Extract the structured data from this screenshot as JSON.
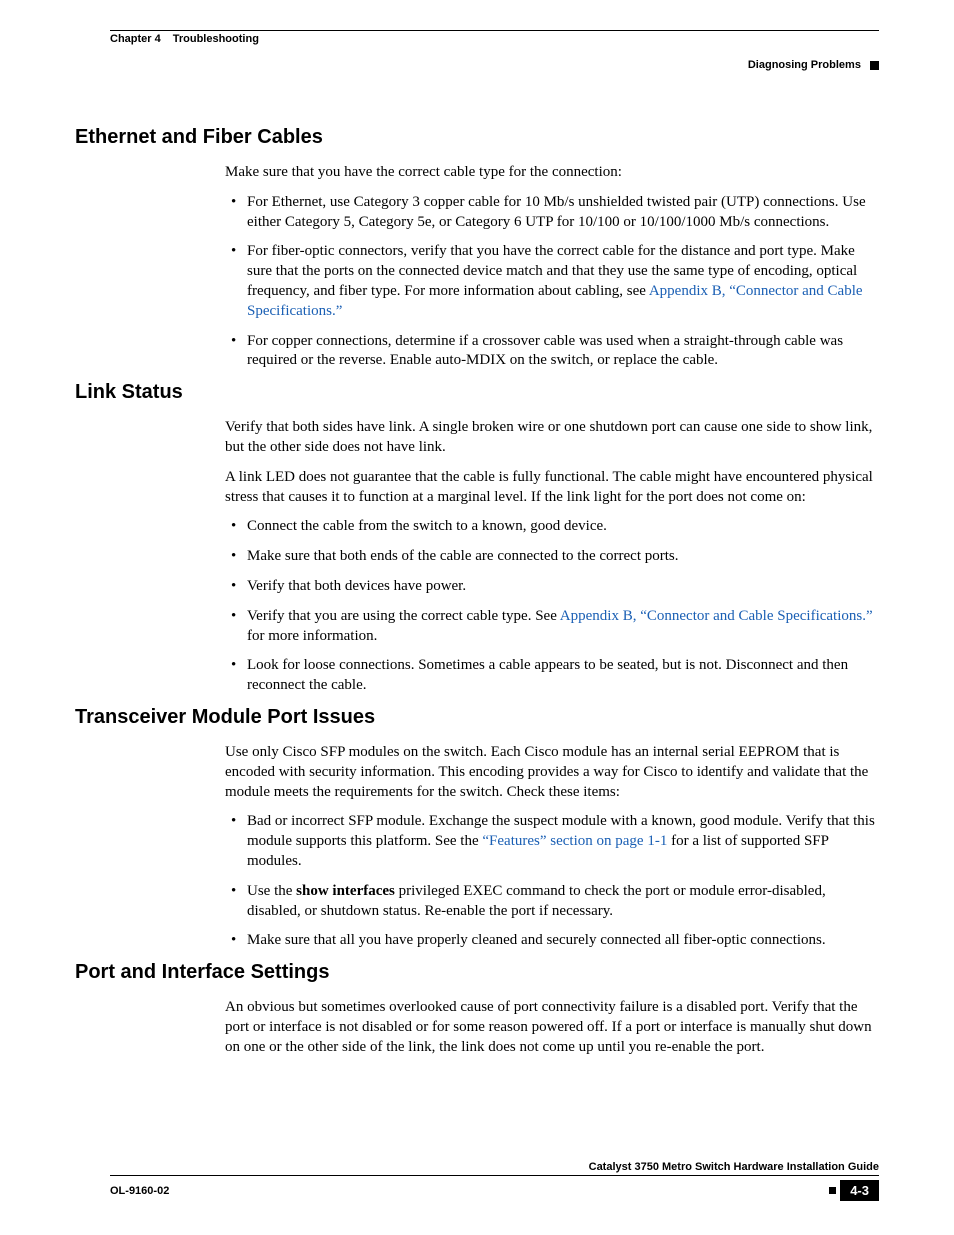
{
  "header": {
    "chapter_label": "Chapter 4",
    "chapter_title": "Troubleshooting",
    "subheader": "Diagnosing Problems"
  },
  "colors": {
    "text": "#000000",
    "link": "#1a5fb4",
    "background": "#ffffff",
    "rule": "#000000"
  },
  "typography": {
    "body_family": "Times New Roman",
    "heading_family": "Arial",
    "body_size_pt": 11,
    "heading_size_pt": 15,
    "header_size_pt": 8
  },
  "sections": [
    {
      "title": "Ethernet and Fiber Cables",
      "intro": "Make sure that you have the correct cable type for the connection:",
      "bullets": [
        {
          "text": "For Ethernet, use Category 3 copper cable for 10 Mb/s unshielded twisted pair (UTP) connections. Use either Category 5, Category 5e, or Category 6 UTP for 10/100 or 10/100/1000 Mb/s connections."
        },
        {
          "pre": "For fiber-optic connectors, verify that you have the correct cable for the distance and port type. Make sure that the ports on the connected device match and that they use the same type of encoding, optical frequency, and fiber type. For more information about cabling, see ",
          "link": "Appendix B, “Connector and Cable Specifications.”"
        },
        {
          "text": "For copper connections, determine if a crossover cable was used when a straight-through cable was required or the reverse. Enable auto-MDIX on the switch, or replace the cable."
        }
      ]
    },
    {
      "title": "Link Status",
      "paras": [
        "Verify that both sides have link. A single broken wire or one shutdown port can cause one side to show link, but the other side does not have link.",
        "A link LED does not guarantee that the cable is fully functional. The cable might have encountered physical stress that causes it to function at a marginal level. If the link light for the port does not come on:"
      ],
      "bullets": [
        {
          "text": "Connect the cable from the switch to a known, good device."
        },
        {
          "text": "Make sure that both ends of the cable are connected to the correct ports."
        },
        {
          "text": "Verify that both devices have power."
        },
        {
          "pre": "Verify that you are using the correct cable type. See ",
          "link": "Appendix B, “Connector and Cable Specifications.”",
          "post": " for more information."
        },
        {
          "text": "Look for loose connections. Sometimes a cable appears to be seated, but is not. Disconnect and then reconnect the cable."
        }
      ]
    },
    {
      "title": "Transceiver Module Port Issues",
      "paras": [
        "Use only Cisco SFP modules on the switch. Each Cisco module has an internal serial EEPROM that is encoded with security information. This encoding provides a way for Cisco to identify and validate that the module meets the requirements for the switch. Check these items:"
      ],
      "bullets": [
        {
          "pre": "Bad or incorrect SFP module. Exchange the suspect module with a known, good module. Verify that this module supports this platform. See the ",
          "link": "“Features” section on page 1-1",
          "post": " for a list of supported SFP modules."
        },
        {
          "pre": "Use the ",
          "bold": "show interfaces",
          "post2": " privileged EXEC command to check the port or module error-disabled, disabled, or shutdown status. Re-enable the port if necessary."
        },
        {
          "text": "Make sure that all you have properly cleaned and securely connected all fiber-optic connections."
        }
      ]
    },
    {
      "title": "Port and Interface Settings",
      "paras": [
        "An obvious but sometimes overlooked cause of port connectivity failure is a disabled port. Verify that the port or interface is not disabled or for some reason powered off. If a port or interface is manually shut down on one or the other side of the link, the link does not come up until you re-enable the port."
      ]
    }
  ],
  "footer": {
    "guide_title": "Catalyst 3750 Metro Switch Hardware Installation Guide",
    "doc_id": "OL-9160-02",
    "page_num": "4-3"
  }
}
